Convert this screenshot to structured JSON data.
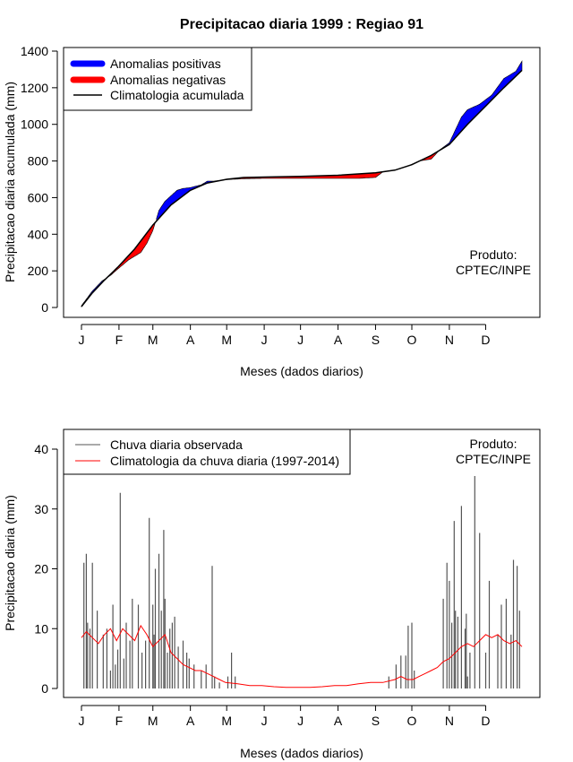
{
  "chart_data": [
    {
      "type": "area",
      "title": "Precipitacao diaria 1999 : Regiao 91",
      "xlabel": "Meses (dados diarios)",
      "ylabel": "Precipitacao diaria acumulada (mm)",
      "xlim": [
        1,
        365
      ],
      "ylim": [
        0,
        1400
      ],
      "yticks": [
        0,
        200,
        400,
        600,
        800,
        1000,
        1200,
        1400
      ],
      "month_labels": [
        "J",
        "F",
        "M",
        "A",
        "M",
        "J",
        "J",
        "A",
        "S",
        "O",
        "N",
        "D"
      ],
      "month_days": [
        1,
        32,
        60,
        91,
        121,
        152,
        182,
        213,
        244,
        274,
        305,
        335
      ],
      "legend": [
        "Anomalias positivas",
        "Anomalias negativas",
        "Climatologia acumulada"
      ],
      "legend_position": "top-left",
      "annotation": [
        "Produto:",
        "CPTEC/INPE"
      ],
      "colors": {
        "positive": "#0000ff",
        "negative": "#ff0000",
        "climatology": "#000000"
      },
      "climatology_points": [
        [
          1,
          5
        ],
        [
          10,
          80
        ],
        [
          20,
          150
        ],
        [
          31,
          220
        ],
        [
          45,
          320
        ],
        [
          60,
          450
        ],
        [
          75,
          560
        ],
        [
          91,
          640
        ],
        [
          105,
          680
        ],
        [
          121,
          700
        ],
        [
          135,
          710
        ],
        [
          152,
          712
        ],
        [
          182,
          716
        ],
        [
          213,
          722
        ],
        [
          244,
          735
        ],
        [
          260,
          750
        ],
        [
          274,
          780
        ],
        [
          290,
          830
        ],
        [
          305,
          890
        ],
        [
          320,
          1000
        ],
        [
          335,
          1100
        ],
        [
          350,
          1200
        ],
        [
          365,
          1295
        ]
      ],
      "observed_points": [
        [
          1,
          10
        ],
        [
          10,
          90
        ],
        [
          18,
          145
        ],
        [
          25,
          175
        ],
        [
          31,
          210
        ],
        [
          40,
          260
        ],
        [
          45,
          280
        ],
        [
          50,
          300
        ],
        [
          55,
          350
        ],
        [
          60,
          420
        ],
        [
          65,
          530
        ],
        [
          70,
          580
        ],
        [
          75,
          610
        ],
        [
          80,
          640
        ],
        [
          85,
          650
        ],
        [
          91,
          655
        ],
        [
          100,
          670
        ],
        [
          105,
          690
        ],
        [
          110,
          690
        ],
        [
          121,
          698
        ],
        [
          135,
          703
        ],
        [
          152,
          705
        ],
        [
          182,
          705
        ],
        [
          200,
          705
        ],
        [
          213,
          705
        ],
        [
          230,
          705
        ],
        [
          244,
          710
        ],
        [
          250,
          740
        ],
        [
          260,
          750
        ],
        [
          270,
          770
        ],
        [
          280,
          800
        ],
        [
          290,
          810
        ],
        [
          297,
          860
        ],
        [
          305,
          900
        ],
        [
          310,
          970
        ],
        [
          315,
          1040
        ],
        [
          320,
          1080
        ],
        [
          330,
          1110
        ],
        [
          340,
          1160
        ],
        [
          350,
          1250
        ],
        [
          360,
          1290
        ],
        [
          365,
          1345
        ]
      ]
    },
    {
      "type": "bar",
      "xlabel": "Meses (dados diarios)",
      "ylabel": "Precipitacao diaria (mm)",
      "xlim": [
        1,
        365
      ],
      "ylim": [
        0,
        40
      ],
      "yticks": [
        0,
        10,
        20,
        30,
        40
      ],
      "month_labels": [
        "J",
        "F",
        "M",
        "A",
        "M",
        "J",
        "J",
        "A",
        "S",
        "O",
        "N",
        "D"
      ],
      "month_days": [
        1,
        32,
        60,
        91,
        121,
        152,
        182,
        213,
        244,
        274,
        305,
        335
      ],
      "legend": [
        "Chuva diaria observada",
        "Climatologia da chuva diaria (1997-2014)"
      ],
      "legend_position": "top-left",
      "annotation": [
        "Produto:",
        "CPTEC/INPE"
      ],
      "colors": {
        "observed": "#555555",
        "climatology": "#ff0000"
      },
      "observed_rain": [
        [
          3,
          21
        ],
        [
          5,
          22.5
        ],
        [
          6,
          11
        ],
        [
          8,
          10
        ],
        [
          10,
          21
        ],
        [
          14,
          13
        ],
        [
          19,
          9
        ],
        [
          22,
          10
        ],
        [
          25,
          3
        ],
        [
          27,
          14
        ],
        [
          29,
          4
        ],
        [
          31,
          6.5
        ],
        [
          33,
          32.7
        ],
        [
          36,
          5
        ],
        [
          38,
          11
        ],
        [
          41,
          8
        ],
        [
          43,
          15
        ],
        [
          48,
          14
        ],
        [
          51,
          6
        ],
        [
          54,
          8
        ],
        [
          57,
          28.5
        ],
        [
          60,
          14
        ],
        [
          61,
          9
        ],
        [
          62,
          20
        ],
        [
          65,
          22.5
        ],
        [
          67,
          13
        ],
        [
          69,
          26.5
        ],
        [
          70,
          15
        ],
        [
          72,
          6
        ],
        [
          74,
          10
        ],
        [
          76,
          11
        ],
        [
          78,
          12
        ],
        [
          81,
          7
        ],
        [
          85,
          8
        ],
        [
          88,
          6
        ],
        [
          90,
          5
        ],
        [
          94,
          4
        ],
        [
          100,
          3
        ],
        [
          104,
          4
        ],
        [
          109,
          20.5
        ],
        [
          111,
          2
        ],
        [
          115,
          1
        ],
        [
          122,
          2
        ],
        [
          125,
          6
        ],
        [
          128,
          2
        ],
        [
          255,
          2
        ],
        [
          261,
          4
        ],
        [
          265,
          5.5
        ],
        [
          269,
          5.5
        ],
        [
          271,
          10.5
        ],
        [
          274,
          11
        ],
        [
          276,
          3
        ],
        [
          300,
          15
        ],
        [
          303,
          21
        ],
        [
          305,
          18
        ],
        [
          307,
          11
        ],
        [
          309,
          28
        ],
        [
          310,
          13
        ],
        [
          312,
          12
        ],
        [
          315,
          30.5
        ],
        [
          318,
          10
        ],
        [
          319,
          12.5
        ],
        [
          320,
          2
        ],
        [
          322,
          6
        ],
        [
          326,
          35.5
        ],
        [
          330,
          26
        ],
        [
          335,
          6
        ],
        [
          338,
          18
        ],
        [
          345,
          9
        ],
        [
          348,
          14
        ],
        [
          352,
          15
        ],
        [
          356,
          9
        ],
        [
          358,
          21.5
        ],
        [
          361,
          20.5
        ],
        [
          363,
          13
        ]
      ],
      "climatology_curve": [
        [
          1,
          8.5
        ],
        [
          5,
          9.5
        ],
        [
          10,
          8.5
        ],
        [
          15,
          7.5
        ],
        [
          20,
          9
        ],
        [
          25,
          10
        ],
        [
          30,
          8
        ],
        [
          35,
          10
        ],
        [
          40,
          9
        ],
        [
          45,
          8
        ],
        [
          50,
          10.5
        ],
        [
          55,
          9
        ],
        [
          60,
          7
        ],
        [
          65,
          8
        ],
        [
          70,
          9
        ],
        [
          75,
          6
        ],
        [
          80,
          5
        ],
        [
          85,
          4
        ],
        [
          90,
          3.5
        ],
        [
          95,
          3
        ],
        [
          100,
          3
        ],
        [
          105,
          2.5
        ],
        [
          110,
          2
        ],
        [
          115,
          1.5
        ],
        [
          120,
          1
        ],
        [
          130,
          0.8
        ],
        [
          140,
          0.5
        ],
        [
          150,
          0.5
        ],
        [
          160,
          0.3
        ],
        [
          170,
          0.2
        ],
        [
          180,
          0.2
        ],
        [
          190,
          0.2
        ],
        [
          200,
          0.3
        ],
        [
          210,
          0.5
        ],
        [
          220,
          0.5
        ],
        [
          230,
          0.8
        ],
        [
          240,
          1
        ],
        [
          250,
          1
        ],
        [
          260,
          1.5
        ],
        [
          265,
          2
        ],
        [
          270,
          1.5
        ],
        [
          275,
          1.5
        ],
        [
          280,
          2
        ],
        [
          285,
          2.5
        ],
        [
          290,
          3
        ],
        [
          295,
          3.5
        ],
        [
          300,
          4.5
        ],
        [
          305,
          5
        ],
        [
          310,
          6
        ],
        [
          315,
          7
        ],
        [
          320,
          7.5
        ],
        [
          325,
          7
        ],
        [
          330,
          8
        ],
        [
          335,
          9
        ],
        [
          340,
          8.5
        ],
        [
          345,
          9
        ],
        [
          350,
          8
        ],
        [
          355,
          7.5
        ],
        [
          360,
          8
        ],
        [
          365,
          7
        ]
      ]
    }
  ]
}
